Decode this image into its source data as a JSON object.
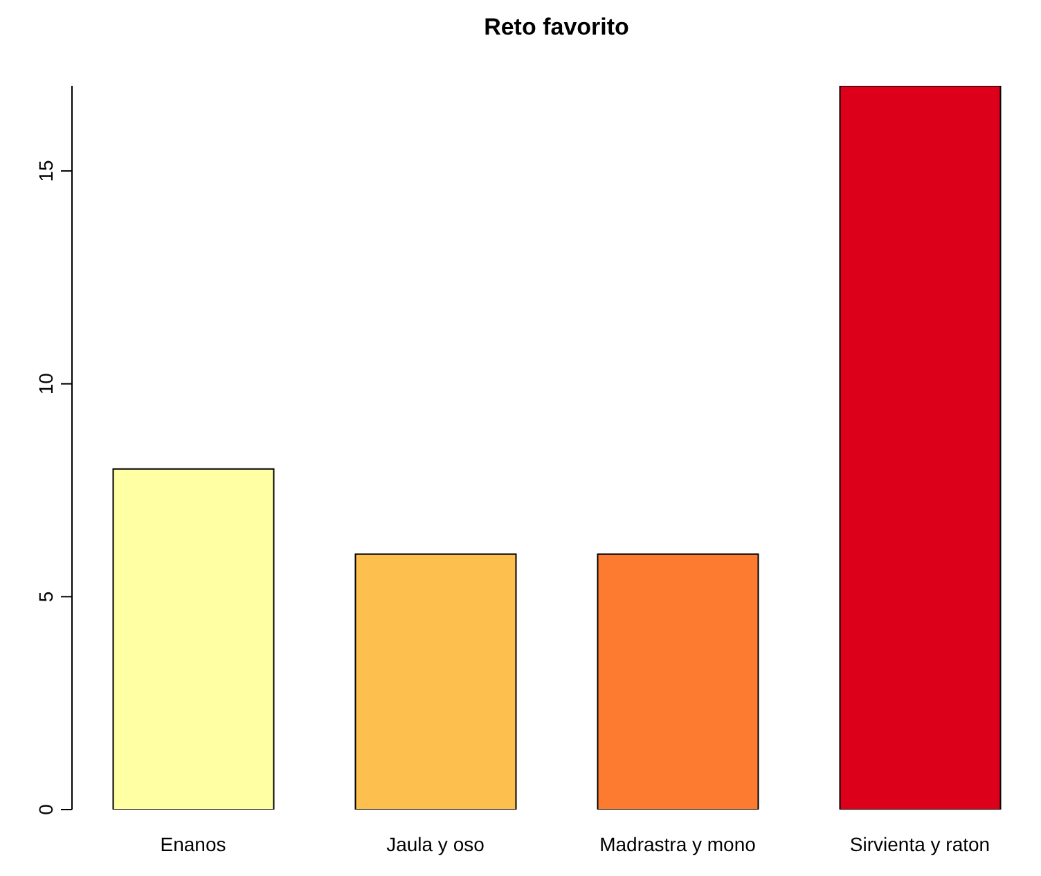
{
  "chart_data": {
    "type": "bar",
    "title": "Reto favorito",
    "categories": [
      "Enanos",
      "Jaula y oso",
      "Madrastra y mono",
      "Sirvienta y raton"
    ],
    "values": [
      8,
      6,
      6,
      17
    ],
    "colors": [
      "#ffffa3",
      "#fdc04f",
      "#fc7b31",
      "#dc001b"
    ],
    "ylim": [
      0,
      17
    ],
    "yticks": [
      0,
      5,
      10,
      15
    ],
    "grid": false,
    "legend": false
  }
}
